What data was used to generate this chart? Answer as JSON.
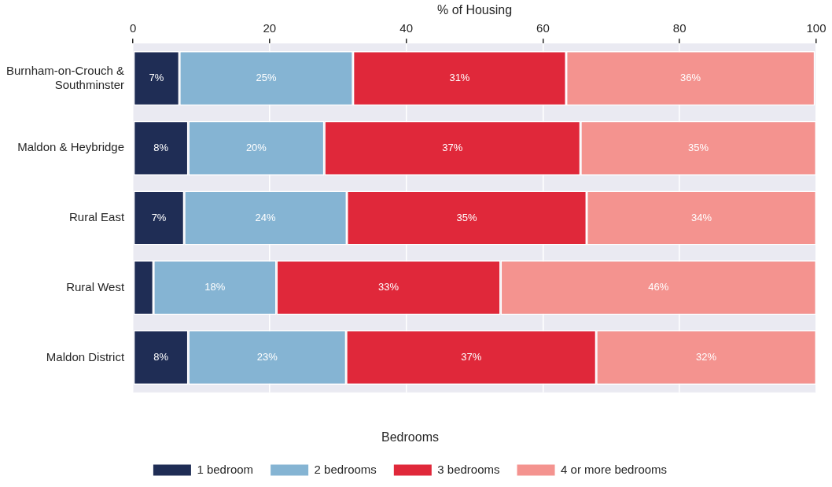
{
  "chart_data": {
    "type": "bar",
    "orientation": "horizontal",
    "stacked": true,
    "xlabel": "% of Housing",
    "legend_title": "Bedrooms",
    "legend": "bottom",
    "grid": "x",
    "categories": [
      "Burnham-on-Crouch & Southminster",
      "Maldon & Heybridge",
      "Rural East",
      "Rural West",
      "Maldon District"
    ],
    "xlim": [
      0,
      100
    ],
    "xticks": [
      0,
      20,
      40,
      60,
      80,
      100
    ],
    "series": [
      {
        "name": "1 bedroom",
        "color": "#1f2d55",
        "values": [
          6.8,
          8.1,
          7.5,
          3.0,
          8.1
        ],
        "value_labels": [
          "7%",
          "8%",
          "7%",
          null,
          "8%"
        ]
      },
      {
        "name": "2 bedrooms",
        "color": "#85b4d3",
        "values": [
          25.4,
          19.9,
          23.8,
          18.0,
          23.1
        ],
        "value_labels": [
          "25%",
          "20%",
          "24%",
          "18%",
          "23%"
        ]
      },
      {
        "name": "3 bedrooms",
        "color": "#e0283a",
        "values": [
          31.2,
          37.5,
          35.1,
          32.8,
          36.6
        ],
        "value_labels": [
          "31%",
          "37%",
          "35%",
          "33%",
          "37%"
        ]
      },
      {
        "name": "4 or more bedrooms",
        "color": "#f4938f",
        "values": [
          36.4,
          34.5,
          33.6,
          46.2,
          32.2
        ],
        "value_labels": [
          "36%",
          "35%",
          "34%",
          "46%",
          "32%"
        ]
      }
    ]
  }
}
